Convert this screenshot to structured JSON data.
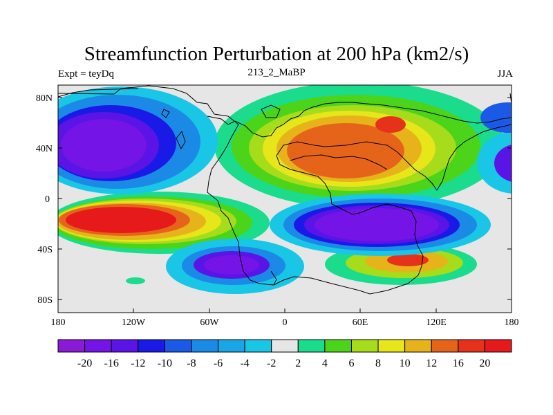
{
  "title": "Streamfunction Perturbation at 200 hPa (km2/s)",
  "left_label": "Expt = teyDq",
  "center_label": "213_2_MaBP",
  "right_label": "JJA",
  "lat_ticks": [
    "80N",
    "40N",
    "0",
    "40S",
    "80S"
  ],
  "lon_ticks": [
    "180",
    "120W",
    "60W",
    "0",
    "60E",
    "120E",
    "180"
  ],
  "colorbar": {
    "labels": [
      "-20",
      "-16",
      "-12",
      "-10",
      "-8",
      "-6",
      "-4",
      "-2",
      "2",
      "4",
      "6",
      "8",
      "10",
      "12",
      "16",
      "20"
    ],
    "colors": [
      "#8a1ad6",
      "#7414e6",
      "#5a14e6",
      "#1a1ae6",
      "#1a5ae6",
      "#1a8ae6",
      "#1aa6e6",
      "#1ac6e6",
      "#e6e6e6",
      "#1adc8c",
      "#4cd41a",
      "#a6dc1a",
      "#e6e61a",
      "#e6b41a",
      "#e6641a",
      "#e6321a",
      "#e61a1a"
    ]
  }
}
